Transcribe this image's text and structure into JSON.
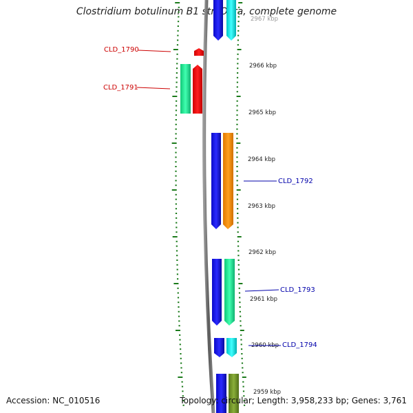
{
  "title": "Clostridium botulinum B1 str. Okra, complete genome",
  "footer": {
    "accession": "Accession: NC_010516",
    "summary": "Topology: circular; Length: 3,958,233 bp; Genes: 3,761"
  },
  "colors": {
    "tick": "#1a7a1a",
    "backbone": "#808080",
    "red_label": "#cc0000",
    "blue_label": "#0000aa",
    "blue_gene": "#1414e6",
    "cyan_gene": "#00e8e8",
    "red_gene": "#ff0000",
    "green_gene": "#19e890",
    "orange_gene": "#ff8c00",
    "olive_gene": "#6b8e23"
  },
  "scale_labels": [
    {
      "text": "2967 kbp"
    },
    {
      "text": "2966 kbp"
    },
    {
      "text": "2965 kbp"
    },
    {
      "text": "2964 kbp"
    },
    {
      "text": "2963 kbp"
    },
    {
      "text": "2962 kbp"
    },
    {
      "text": "2961 kbp"
    },
    {
      "text": "2960 kbp"
    },
    {
      "text": "2959 kbp"
    }
  ],
  "gene_labels": [
    {
      "text": "CLD_1790",
      "color": "red"
    },
    {
      "text": "CLD_1791",
      "color": "red"
    },
    {
      "text": "CLD_1792",
      "color": "blue"
    },
    {
      "text": "CLD_1793",
      "color": "blue"
    },
    {
      "text": "CLD_1794",
      "color": "blue"
    }
  ]
}
